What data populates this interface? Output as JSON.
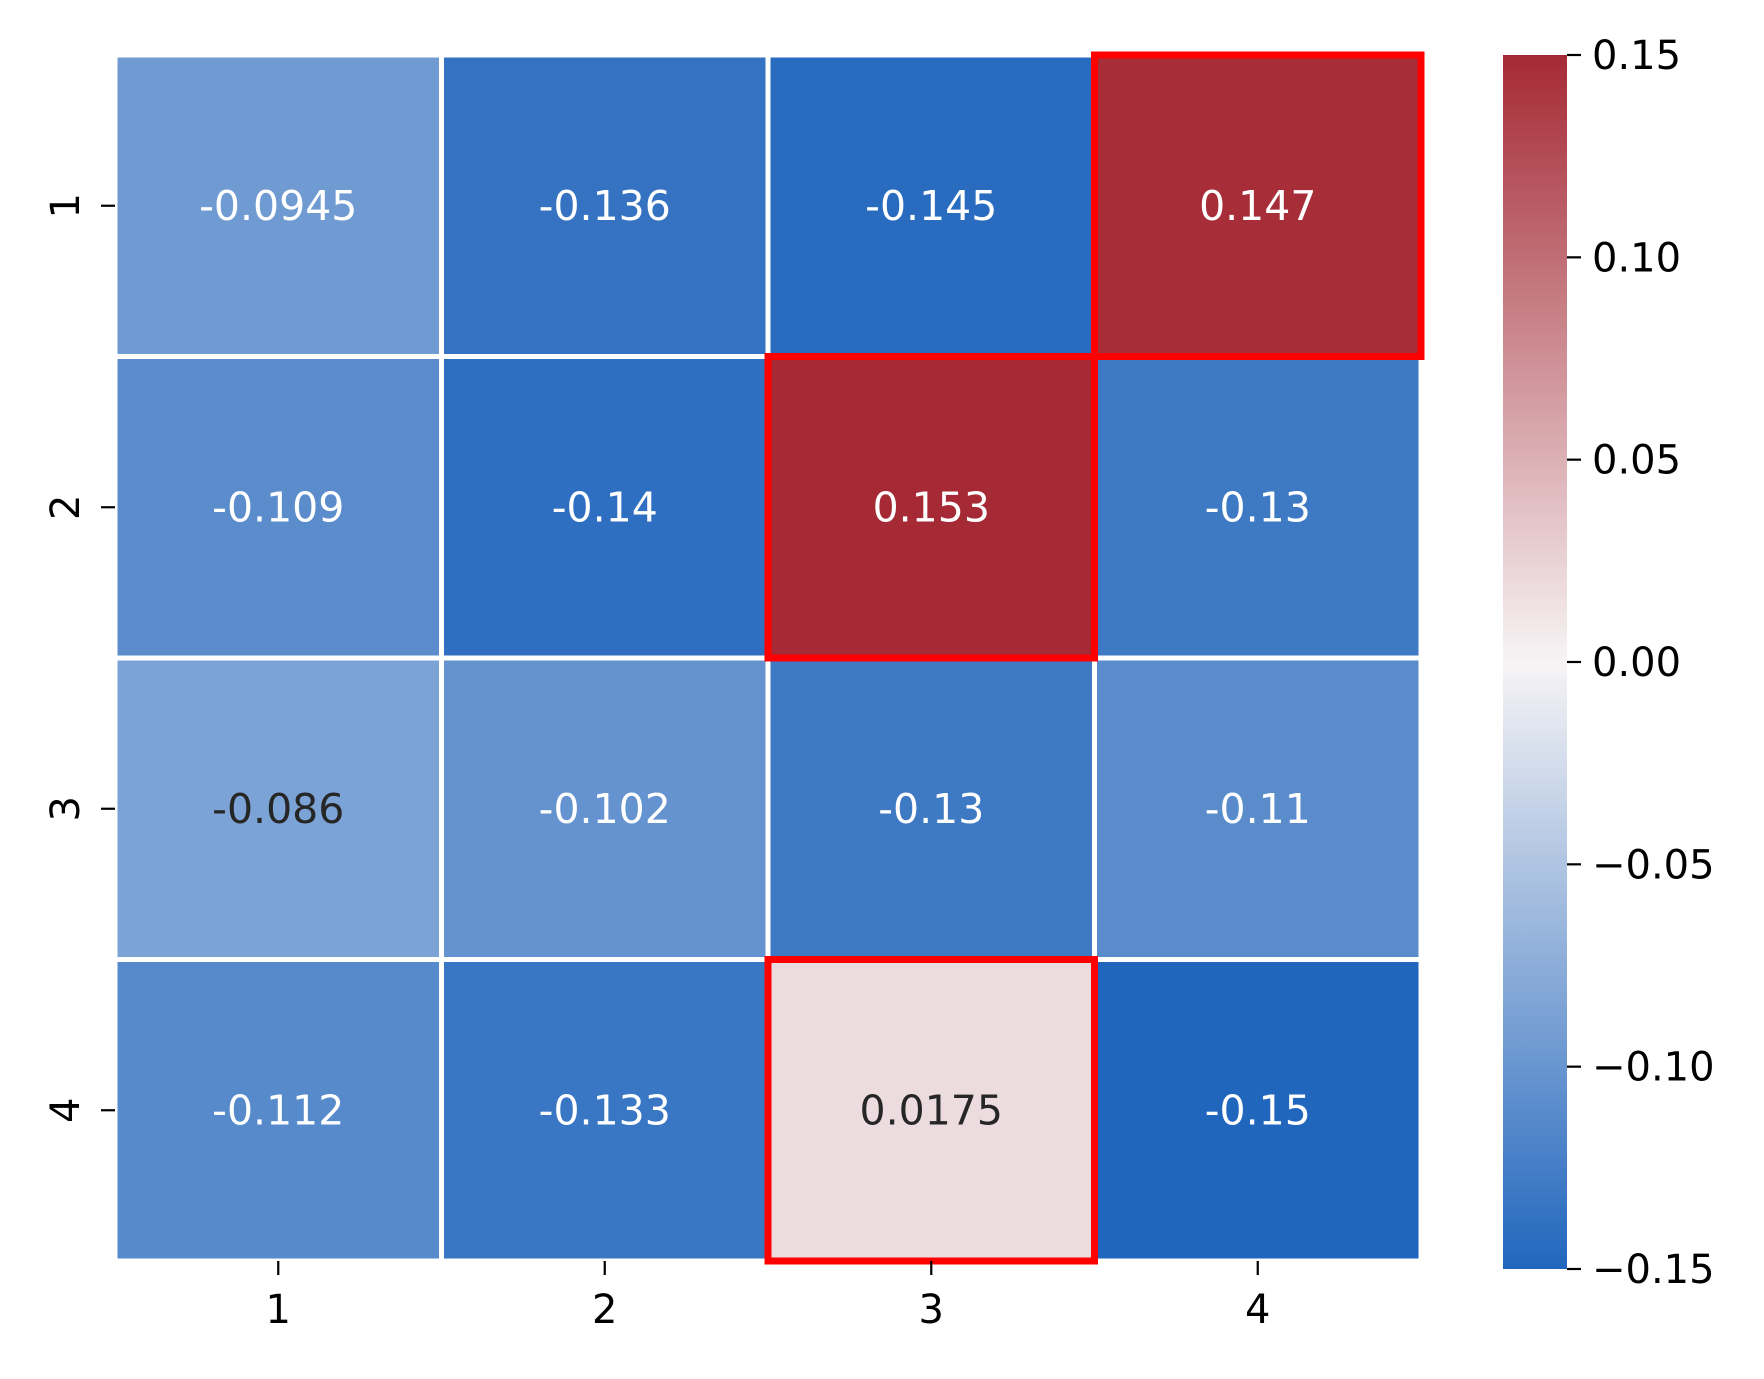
{
  "chart_data": {
    "type": "heatmap",
    "title": "",
    "xlabel": "",
    "ylabel": "",
    "x_labels": [
      "1",
      "2",
      "3",
      "4"
    ],
    "y_labels": [
      "1",
      "2",
      "3",
      "4"
    ],
    "values": [
      [
        -0.0945,
        -0.136,
        -0.145,
        0.147
      ],
      [
        -0.109,
        -0.14,
        0.153,
        -0.13
      ],
      [
        -0.086,
        -0.102,
        -0.13,
        -0.11
      ],
      [
        -0.112,
        -0.133,
        0.0175,
        -0.15
      ]
    ],
    "cell_labels": [
      [
        "-0.0945",
        "-0.136",
        "-0.145",
        "0.147"
      ],
      [
        "-0.109",
        "-0.14",
        "0.153",
        "-0.13"
      ],
      [
        "-0.086",
        "-0.102",
        "-0.13",
        "-0.11"
      ],
      [
        "-0.112",
        "-0.133",
        "0.0175",
        "-0.15"
      ]
    ],
    "highlighted_cells": [
      [
        0,
        3
      ],
      [
        1,
        2
      ],
      [
        3,
        2
      ]
    ],
    "colorbar": {
      "range": [
        -0.15,
        0.15
      ],
      "ticks": [
        0.15,
        0.1,
        0.05,
        0.0,
        -0.05,
        -0.1,
        -0.15
      ],
      "tick_labels": [
        "0.15",
        "0.10",
        "0.05",
        "0.00",
        "−0.05",
        "−0.10",
        "−0.15"
      ]
    },
    "colormap": {
      "negative_end": "#2166bd",
      "mid": "#f7f4f5",
      "positive_end": "#a52a35"
    },
    "highlight_color": "#ff0000"
  }
}
